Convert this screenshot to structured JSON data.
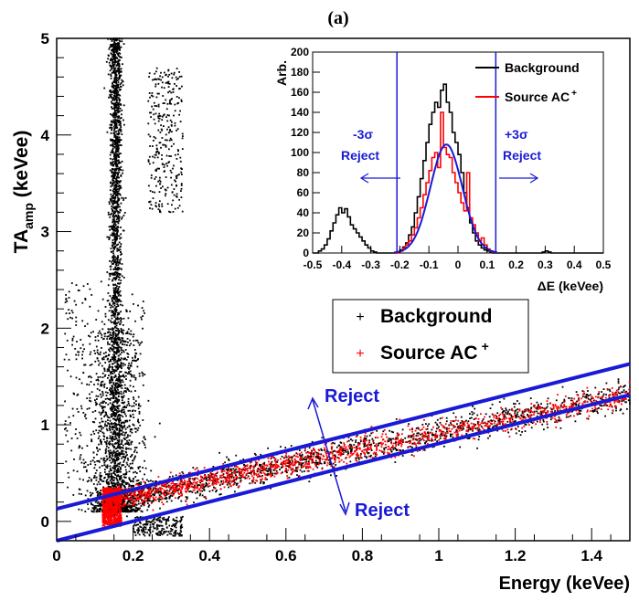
{
  "panel_label": "(a)",
  "chart_data": [
    {
      "type": "scatter",
      "xlabel": "Energy (keVee)",
      "ylabel_main": "TA",
      "ylabel_sub": "amp",
      "ylabel_unit": " (keVee)",
      "xlim": [
        0,
        1.5
      ],
      "ylim": [
        -0.2,
        5
      ],
      "x_ticks": [
        0,
        0.2,
        0.4,
        0.6,
        0.8,
        1,
        1.2,
        1.4
      ],
      "x_tick_labels": [
        "0",
        "0.2",
        "0.4",
        "0.6",
        "0.8",
        "1",
        "1.2",
        "1.4"
      ],
      "y_ticks": [
        0,
        1,
        2,
        3,
        4,
        5
      ],
      "y_tick_labels": [
        "0",
        "1",
        "2",
        "3",
        "4",
        "5"
      ],
      "legend": {
        "placement": "center-right",
        "entries": [
          {
            "label": "Background",
            "color": "#000000",
            "marker": "+"
          },
          {
            "label": "Source AC",
            "sup": "+",
            "color": "#ff0000",
            "marker": "+"
          }
        ]
      },
      "series": [
        {
          "name": "Background",
          "color": "#000000",
          "clusters": [
            {
              "region": "vertical band",
              "x_center": 0.155,
              "x_spread": 0.008,
              "y_range": [
                0.0,
                5.0
              ]
            },
            {
              "region": "vertical band base",
              "x_center": 0.155,
              "x_spread": 0.03,
              "y_range": [
                0.1,
                2.0
              ]
            },
            {
              "region": "left scattered cloud",
              "x_range": [
                0.02,
                0.23
              ],
              "y_range": [
                0.1,
                2.5
              ]
            },
            {
              "region": "upper cloud",
              "x_range": [
                0.24,
                0.33
              ],
              "y_range": [
                3.2,
                4.7
              ]
            },
            {
              "region": "low cluster",
              "x_range": [
                0.2,
                0.33
              ],
              "y_range": [
                -0.15,
                0.05
              ]
            },
            {
              "region": "diagonal band",
              "x_range": [
                0.13,
                1.5
              ],
              "band_center": [
                0.1,
                0.81
              ],
              "band_width": 0.08
            }
          ]
        },
        {
          "name": "Source AC+",
          "color": "#ff0000",
          "clusters": [
            {
              "region": "low-energy blob",
              "x_range": [
                0.12,
                0.17
              ],
              "y_range": [
                -0.05,
                0.35
              ]
            },
            {
              "region": "diagonal band",
              "x_range": [
                0.13,
                1.5
              ],
              "band_center": [
                0.1,
                0.81
              ],
              "band_width": 0.06
            }
          ]
        }
      ],
      "cut_lines": [
        {
          "name": "upper",
          "color": "#1a1ad6",
          "from": [
            0,
            0.13
          ],
          "to": [
            1.5,
            1.63
          ]
        },
        {
          "name": "lower",
          "color": "#1a1ad6",
          "from": [
            0,
            -0.2
          ],
          "to": [
            1.5,
            1.31
          ]
        }
      ],
      "annotations": {
        "reject_upper": "Reject",
        "reject_lower": "Reject",
        "arrow_color": "#1a1ad6"
      }
    },
    {
      "type": "line",
      "xlabel": "ΔE (keVee)",
      "ylabel": "Arb.",
      "xlim": [
        -0.5,
        0.5
      ],
      "ylim": [
        0,
        200
      ],
      "x_ticks": [
        -0.5,
        -0.4,
        -0.3,
        -0.2,
        -0.1,
        0,
        0.1,
        0.2,
        0.3,
        0.4,
        0.5
      ],
      "x_tick_labels": [
        "-0.5",
        "-0.4",
        "-0.3",
        "-0.2",
        "-0.1",
        "0",
        "0.1",
        "0.2",
        "0.3",
        "0.4",
        "0.5"
      ],
      "y_ticks": [
        0,
        20,
        40,
        60,
        80,
        100,
        120,
        140,
        160,
        180,
        200
      ],
      "y_tick_labels": [
        "0",
        "20",
        "40",
        "60",
        "80",
        "100",
        "120",
        "140",
        "160",
        "180",
        "200"
      ],
      "legend": {
        "placement": "top-right",
        "entries": [
          {
            "label": "Background",
            "color": "#000000"
          },
          {
            "label": "Source AC",
            "sup": "+",
            "color": "#ff0000"
          }
        ]
      },
      "series": [
        {
          "name": "Background",
          "color": "#000000",
          "kind": "histogram",
          "x": [
            -0.5,
            -0.49,
            -0.48,
            -0.47,
            -0.46,
            -0.45,
            -0.44,
            -0.43,
            -0.42,
            -0.41,
            -0.4,
            -0.39,
            -0.38,
            -0.37,
            -0.36,
            -0.35,
            -0.34,
            -0.33,
            -0.32,
            -0.31,
            -0.3,
            -0.29,
            -0.28,
            -0.27,
            -0.26,
            -0.25,
            -0.24,
            -0.23,
            -0.22,
            -0.21,
            -0.2,
            -0.19,
            -0.18,
            -0.17,
            -0.16,
            -0.15,
            -0.14,
            -0.13,
            -0.12,
            -0.11,
            -0.1,
            -0.09,
            -0.08,
            -0.07,
            -0.06,
            -0.05,
            -0.04,
            -0.03,
            -0.02,
            -0.01,
            0,
            0.01,
            0.02,
            0.03,
            0.04,
            0.05,
            0.06,
            0.07,
            0.08,
            0.09,
            0.1,
            0.11,
            0.12,
            0.13,
            0.14,
            0.15,
            0.16,
            0.17,
            0.18,
            0.19,
            0.2,
            0.21,
            0.22,
            0.23,
            0.24,
            0.25,
            0.26,
            0.27,
            0.28,
            0.29,
            0.3,
            0.31,
            0.32,
            0.33,
            0.34,
            0.35,
            0.36,
            0.37,
            0.38,
            0.39,
            0.4,
            0.41,
            0.42,
            0.43,
            0.44,
            0.45,
            0.46,
            0.47,
            0.48,
            0.49
          ],
          "y": [
            0,
            0,
            2,
            4,
            8,
            14,
            22,
            30,
            38,
            45,
            40,
            44,
            36,
            28,
            24,
            20,
            16,
            12,
            8,
            5,
            2,
            1,
            0,
            0,
            0,
            0,
            0,
            0,
            0,
            1,
            3,
            6,
            10,
            18,
            26,
            40,
            56,
            74,
            92,
            110,
            128,
            140,
            150,
            145,
            162,
            168,
            150,
            140,
            120,
            110,
            98,
            80,
            60,
            45,
            30,
            20,
            12,
            8,
            5,
            3,
            2,
            1,
            0,
            0,
            0,
            0,
            0,
            0,
            0,
            0,
            0,
            0,
            0,
            0,
            0,
            0,
            0,
            0,
            0,
            1,
            2,
            1,
            0,
            0,
            0,
            0,
            0,
            0,
            0,
            0,
            0,
            0,
            0,
            0,
            0,
            0,
            0,
            0,
            0,
            0
          ]
        },
        {
          "name": "Source AC+",
          "color": "#ff0000",
          "kind": "histogram",
          "x": [
            -0.22,
            -0.21,
            -0.2,
            -0.19,
            -0.18,
            -0.17,
            -0.16,
            -0.15,
            -0.14,
            -0.13,
            -0.12,
            -0.11,
            -0.1,
            -0.09,
            -0.08,
            -0.07,
            -0.06,
            -0.05,
            -0.04,
            -0.03,
            -0.02,
            -0.01,
            0,
            0.01,
            0.02,
            0.03,
            0.04,
            0.05,
            0.06,
            0.07,
            0.08,
            0.09,
            0.1,
            0.11
          ],
          "y": [
            0,
            0,
            2,
            5,
            8,
            12,
            18,
            25,
            35,
            45,
            58,
            70,
            82,
            95,
            100,
            85,
            140,
            105,
            98,
            95,
            80,
            70,
            60,
            50,
            42,
            80,
            35,
            28,
            20,
            12,
            15,
            8,
            4,
            2
          ]
        },
        {
          "name": "Fit",
          "color": "#1a1ad6",
          "kind": "gaussian",
          "mean": -0.04,
          "sigma": 0.055,
          "amplitude": 108
        }
      ],
      "cut_lines": [
        {
          "name": "-3sigma",
          "x": -0.21,
          "color": "#1a1ad6"
        },
        {
          "name": "+3sigma",
          "x": 0.13,
          "color": "#1a1ad6"
        }
      ],
      "annotations": {
        "minus_label": "-3σ",
        "plus_label": "+3σ",
        "reject_left": "Reject",
        "reject_right": "Reject"
      }
    }
  ]
}
